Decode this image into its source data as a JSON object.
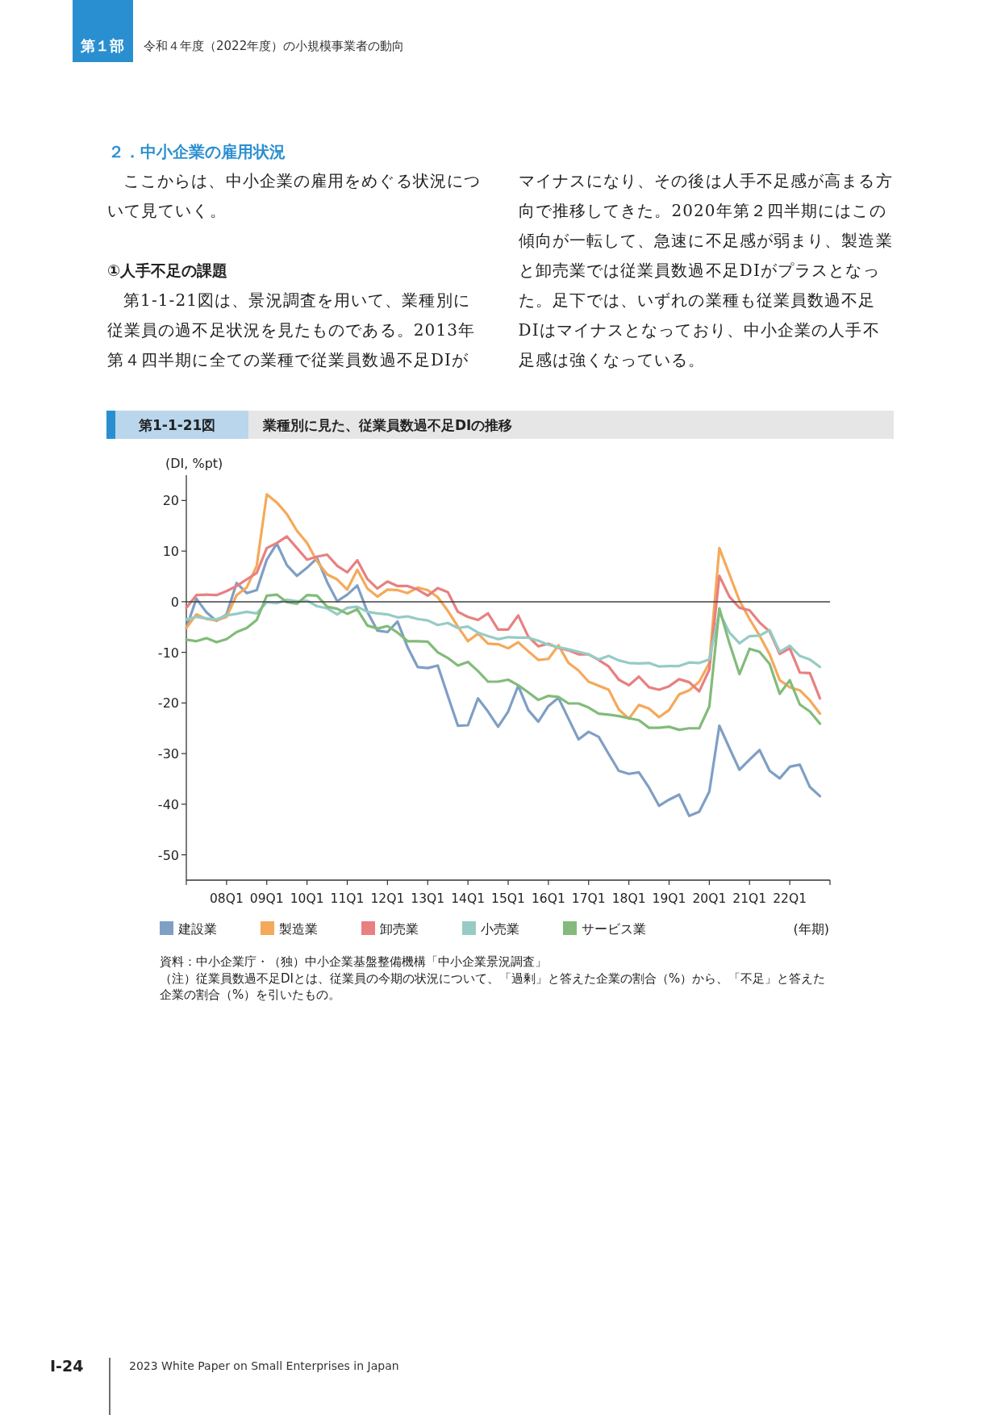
{
  "chart_data": {
    "type": "line",
    "title": "業種別に見た、従業員数過不足DIの推移",
    "ylabel": "(DI, %pt)",
    "xlabel": "(年期)",
    "annotations": [
      "第１部",
      "令和４年度（2022年度）の小規模事業者の動向",
      "２．中小企業の雇用状況",
      "ここからは、中小企業の雇用をめぐる状況について見ていく。",
      "①人手不足の課題",
      "第1-1-21図は、景況調査を用いて、業種別に従業員の過不足状況を見たものである。2013年第４四半期に全ての業種で従業員数過不足DIがマイナスになり、その後は人手不足感が高まる方向で推移してきた。2020年第２四半期にはこの傾向が一転して、急速に不足感が弱まり、製造業と卸売業では従業員数過不足DIがプラスとなった。足下では、いずれの業種も従業員数過不足DIはマイナスとなっており、中小企業の人手不足感は強くなっている。",
      "第1-1-21図",
      "資料：中小企業庁・（独）中小企業基盤整備機構「中小企業景況調査」",
      "（注）従業員数過不足DIとは、従業員の今期の状況について、「過剰」と答えた企業の割合（%）から、「不足」と答えた企業の割合（%）を引いたもの。",
      "Ⅰ-24",
      "2023 White Paper on Small Enterprises in Japan"
    ],
    "categories": [
      null,
      null,
      null,
      null,
      "08Q1",
      null,
      null,
      null,
      "09Q1",
      null,
      null,
      null,
      "10Q1",
      null,
      null,
      null,
      "11Q1",
      null,
      null,
      null,
      "12Q1",
      null,
      null,
      null,
      "13Q1",
      null,
      null,
      null,
      "14Q1",
      null,
      null,
      null,
      "15Q1",
      null,
      null,
      null,
      "16Q1",
      null,
      null,
      null,
      "17Q1",
      null,
      null,
      null,
      "18Q1",
      null,
      null,
      null,
      "19Q1",
      null,
      null,
      null,
      "20Q1",
      null,
      null,
      null,
      "21Q1",
      null,
      null,
      null,
      "22Q1",
      null,
      null,
      null
    ],
    "series": [
      {
        "name": "建設業",
        "color": "#7f9fc4",
        "values": [
          -5.2,
          0.6,
          -2.1,
          -3.8,
          -2.5,
          3.7,
          1.7,
          2.3,
          8.3,
          11.5,
          7.2,
          5.1,
          6.7,
          8.6,
          3.9,
          0.1,
          1.4,
          3.2,
          -2.0,
          -5.7,
          -6.0,
          -3.9,
          -9.0,
          -12.9,
          -13.1,
          -12.6,
          -18.6,
          -24.5,
          -24.4,
          -19.1,
          -21.7,
          -24.7,
          -21.7,
          -16.6,
          -21.4,
          -23.7,
          -20.6,
          -19.0,
          -23.1,
          -27.2,
          -25.7,
          -26.7,
          -30.1,
          -33.4,
          -34.0,
          -33.7,
          -36.7,
          -40.3,
          -39.1,
          -38.1,
          -42.3,
          -41.5,
          -37.5,
          -24.5,
          -28.9,
          -33.2,
          -31.2,
          -29.3,
          -33.4,
          -34.9,
          -32.6,
          -32.2,
          -36.6,
          -38.4
        ]
      },
      {
        "name": "製造業",
        "color": "#f5a95a",
        "values": [
          -5.2,
          -2.5,
          -3.4,
          -3.7,
          -3.0,
          1.3,
          2.8,
          7.1,
          21.2,
          19.6,
          17.3,
          14.0,
          11.6,
          8.0,
          5.4,
          4.4,
          2.4,
          6.3,
          2.6,
          1.0,
          2.4,
          2.3,
          1.7,
          2.8,
          2.3,
          0.9,
          -1.8,
          -4.9,
          -7.8,
          -6.3,
          -8.3,
          -8.4,
          -9.2,
          -8.0,
          -9.8,
          -11.5,
          -11.3,
          -8.6,
          -12.1,
          -13.6,
          -15.8,
          -16.6,
          -17.4,
          -21.3,
          -23.1,
          -20.4,
          -21.1,
          -22.8,
          -21.4,
          -18.3,
          -17.5,
          -15.8,
          -12.1,
          10.6,
          5.4,
          0.2,
          -3.4,
          -6.7,
          -10.4,
          -15.5,
          -16.9,
          -17.5,
          -19.5,
          -22.1
        ]
      },
      {
        "name": "卸売業",
        "color": "#e88080",
        "values": [
          -1.2,
          1.3,
          1.4,
          1.3,
          2.1,
          3.1,
          4.4,
          5.7,
          10.6,
          11.6,
          12.9,
          10.6,
          8.3,
          8.9,
          9.3,
          7.1,
          5.8,
          8.2,
          4.5,
          2.6,
          4.0,
          3.1,
          3.1,
          2.4,
          1.2,
          2.7,
          1.9,
          -2.0,
          -3.0,
          -3.6,
          -2.3,
          -5.5,
          -5.5,
          -2.7,
          -6.9,
          -8.8,
          -8.3,
          -9.1,
          -9.6,
          -10.4,
          -10.4,
          -11.5,
          -12.8,
          -15.4,
          -16.5,
          -14.8,
          -16.9,
          -17.4,
          -16.7,
          -15.3,
          -15.9,
          -17.7,
          -13.4,
          5.1,
          1.0,
          -1.2,
          -1.7,
          -4.1,
          -5.9,
          -10.3,
          -9.2,
          -14.0,
          -14.1,
          -19.1
        ]
      },
      {
        "name": "小売業",
        "color": "#96cbc6",
        "values": [
          -3.5,
          -3.0,
          -3.3,
          -3.5,
          -2.7,
          -2.4,
          -2.0,
          -2.3,
          -0.1,
          -0.3,
          0.4,
          0.1,
          0.2,
          -0.9,
          -1.3,
          -2.5,
          -1.2,
          -1.0,
          -2.0,
          -2.3,
          -2.5,
          -3.1,
          -2.9,
          -3.4,
          -3.7,
          -4.6,
          -4.2,
          -5.2,
          -4.9,
          -6.1,
          -6.8,
          -7.4,
          -7.0,
          -7.1,
          -7.1,
          -7.7,
          -8.5,
          -9.0,
          -9.4,
          -9.9,
          -10.4,
          -11.4,
          -10.7,
          -11.6,
          -12.1,
          -12.2,
          -12.1,
          -12.8,
          -12.7,
          -12.7,
          -12.0,
          -12.1,
          -11.4,
          -2.1,
          -6.1,
          -8.2,
          -6.8,
          -6.7,
          -5.6,
          -9.9,
          -8.7,
          -10.7,
          -11.4,
          -12.9
        ]
      },
      {
        "name": "サービス業",
        "color": "#82bb7a",
        "values": [
          -7.5,
          -7.8,
          -7.2,
          -8.0,
          -7.4,
          -6.0,
          -5.2,
          -3.6,
          1.2,
          1.4,
          -0.1,
          -0.4,
          1.3,
          1.2,
          -1.0,
          -1.4,
          -2.4,
          -1.5,
          -4.7,
          -5.3,
          -4.8,
          -6.1,
          -7.8,
          -7.8,
          -7.9,
          -10.0,
          -11.1,
          -12.6,
          -11.9,
          -13.7,
          -15.8,
          -15.8,
          -15.4,
          -16.5,
          -17.9,
          -19.4,
          -18.6,
          -18.8,
          -20.1,
          -20.1,
          -20.9,
          -22.1,
          -22.3,
          -22.6,
          -23.0,
          -23.4,
          -24.9,
          -24.9,
          -24.7,
          -25.3,
          -25.0,
          -25.0,
          -20.7,
          -1.3,
          -8.2,
          -14.3,
          -9.3,
          -9.9,
          -12.3,
          -18.2,
          -15.5,
          -20.3,
          -21.7,
          -24.1
        ]
      }
    ],
    "ylim": [
      -55,
      25
    ],
    "yticks": [
      -50,
      -40,
      -30,
      -20,
      -10,
      0,
      10,
      20
    ],
    "ref_lines": [
      {
        "axis": "y",
        "value": 0,
        "color": "#404040"
      }
    ],
    "legend": "bottom"
  }
}
